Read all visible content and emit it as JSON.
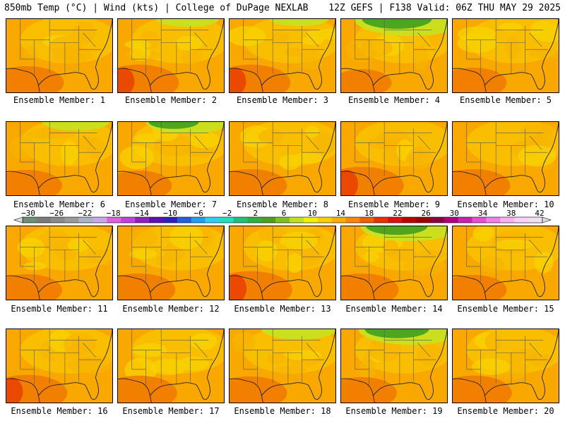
{
  "header": {
    "left": "850mb Temp (°C) | Wind (kts) | College of DuPage NEXLAB",
    "right": "12Z GEFS | F138 Valid: 06Z THU MAY 29 2025"
  },
  "members": [
    {
      "label": "Ensemble Member: 1",
      "warm": 0.45,
      "cool": 0.05
    },
    {
      "label": "Ensemble Member: 2",
      "warm": 0.55,
      "cool": 0.25
    },
    {
      "label": "Ensemble Member: 3",
      "warm": 0.55,
      "cool": 0.2
    },
    {
      "label": "Ensemble Member: 4",
      "warm": 0.25,
      "cool": 0.85
    },
    {
      "label": "Ensemble Member: 5",
      "warm": 0.35,
      "cool": 0.05
    },
    {
      "label": "Ensemble Member: 6",
      "warm": 0.4,
      "cool": 0.3
    },
    {
      "label": "Ensemble Member: 7",
      "warm": 0.35,
      "cool": 0.5
    },
    {
      "label": "Ensemble Member: 8",
      "warm": 0.45,
      "cool": 0.1
    },
    {
      "label": "Ensemble Member: 9",
      "warm": 0.6,
      "cool": 0.1
    },
    {
      "label": "Ensemble Member: 10",
      "warm": 0.45,
      "cool": 0.05
    },
    {
      "label": "Ensemble Member: 11",
      "warm": 0.4,
      "cool": 0.1
    },
    {
      "label": "Ensemble Member: 12",
      "warm": 0.45,
      "cool": 0.05
    },
    {
      "label": "Ensemble Member: 13",
      "warm": 0.6,
      "cool": 0.05
    },
    {
      "label": "Ensemble Member: 14",
      "warm": 0.45,
      "cool": 0.7
    },
    {
      "label": "Ensemble Member: 15",
      "warm": 0.35,
      "cool": 0.05
    },
    {
      "label": "Ensemble Member: 16",
      "warm": 0.55,
      "cool": 0.05
    },
    {
      "label": "Ensemble Member: 17",
      "warm": 0.5,
      "cool": 0.05
    },
    {
      "label": "Ensemble Member: 18",
      "warm": 0.45,
      "cool": 0.4
    },
    {
      "label": "Ensemble Member: 19",
      "warm": 0.4,
      "cool": 0.75
    },
    {
      "label": "Ensemble Member: 20",
      "warm": 0.5,
      "cool": 0.1
    }
  ],
  "colorbar": {
    "labels": [
      "-30",
      "-26",
      "-22",
      "-18",
      "-14",
      "-10",
      "-6",
      "-2",
      "2",
      "6",
      "10",
      "14",
      "18",
      "22",
      "26",
      "30",
      "34",
      "38",
      "42"
    ],
    "colors": [
      "#6b8f78",
      "#7a7a7a",
      "#8a8a8a",
      "#9a9a9a",
      "#aab2c8",
      "#c8a8e8",
      "#e060e0",
      "#c040e0",
      "#9020c0",
      "#6010b0",
      "#3020c0",
      "#2060e0",
      "#20a0f0",
      "#30d0f0",
      "#20e0c0",
      "#20c080",
      "#30b040",
      "#50a020",
      "#80c020",
      "#c0e020",
      "#f0f000",
      "#f8d000",
      "#f8b000",
      "#f88800",
      "#f06000",
      "#e83000",
      "#e01010",
      "#c00000",
      "#a00000",
      "#900040",
      "#b00080",
      "#d020b0",
      "#e850d0",
      "#f080e8",
      "#f8b0f0",
      "#f8d0f8",
      "#f0e0f0"
    ]
  }
}
